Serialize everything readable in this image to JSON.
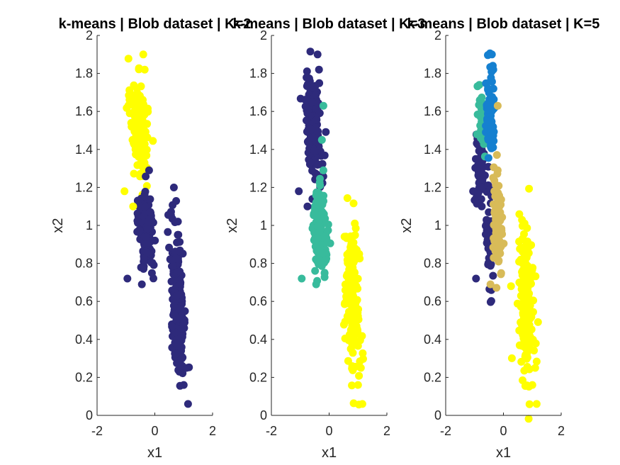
{
  "chart_data": [
    {
      "type": "scatter",
      "title": "k-means | Blob dataset | K=2",
      "xlabel": "x1",
      "ylabel": "x2",
      "xlim": [
        -2,
        2
      ],
      "ylim": [
        0,
        2
      ],
      "xticks": [
        "-2",
        "0",
        "2"
      ],
      "yticks": [
        "0",
        "0.2",
        "0.4",
        "0.6",
        "0.8",
        "1",
        "1.2",
        "1.4",
        "1.6",
        "1.8",
        "2"
      ],
      "grid": false,
      "clusters": [
        {
          "color": "#ffff00",
          "ellipses": [
            {
              "cx": -0.55,
              "cy": 1.52,
              "sx": 0.15,
              "sy": 0.13,
              "rho": -0.4,
              "n": 170
            }
          ]
        },
        {
          "color": "#2e2a7b",
          "ellipses": [
            {
              "cx": -0.3,
              "cy": 0.97,
              "sx": 0.12,
              "sy": 0.11,
              "rho": -0.3,
              "n": 170
            },
            {
              "cx": 0.8,
              "cy": 0.6,
              "sx": 0.13,
              "sy": 0.2,
              "rho": -0.3,
              "n": 170
            }
          ]
        }
      ],
      "points": [
        {
          "x": -0.4,
          "y": 1.9,
          "cluster": 0
        },
        {
          "x": -0.35,
          "y": 1.82,
          "cluster": 0
        },
        {
          "x": -1.05,
          "y": 1.18,
          "cluster": 0
        },
        {
          "x": -0.75,
          "y": 1.1,
          "cluster": 0
        },
        {
          "x": -0.2,
          "y": 1.29,
          "cluster": 1
        },
        {
          "x": -0.95,
          "y": 0.72,
          "cluster": 1
        },
        {
          "x": -0.45,
          "y": 0.69,
          "cluster": 1
        },
        {
          "x": 1.1,
          "y": 0.25,
          "cluster": 1
        },
        {
          "x": 1.0,
          "y": 0.16,
          "cluster": 1
        },
        {
          "x": 1.15,
          "y": 0.06,
          "cluster": 1
        }
      ]
    },
    {
      "type": "scatter",
      "title": "k-means | Blob dataset | K=3",
      "xlabel": "x1",
      "ylabel": "x2",
      "xlim": [
        -2,
        2
      ],
      "ylim": [
        0,
        2
      ],
      "xticks": [
        "-2",
        "0",
        "2"
      ],
      "yticks": [
        "0",
        "0.2",
        "0.4",
        "0.6",
        "0.8",
        "1",
        "1.2",
        "1.4",
        "1.6",
        "1.8",
        "2"
      ],
      "grid": false,
      "clusters": [
        {
          "color": "#2e2a7b",
          "ellipses": [
            {
              "cx": -0.55,
              "cy": 1.52,
              "sx": 0.15,
              "sy": 0.13,
              "rho": -0.4,
              "n": 170
            }
          ]
        },
        {
          "color": "#38bb9c",
          "ellipses": [
            {
              "cx": -0.3,
              "cy": 0.97,
              "sx": 0.12,
              "sy": 0.11,
              "rho": -0.3,
              "n": 170
            }
          ]
        },
        {
          "color": "#ffff00",
          "ellipses": [
            {
              "cx": 0.8,
              "cy": 0.6,
              "sx": 0.13,
              "sy": 0.2,
              "rho": -0.3,
              "n": 170
            }
          ]
        }
      ],
      "points": [
        {
          "x": -0.4,
          "y": 1.9,
          "cluster": 0
        },
        {
          "x": -0.35,
          "y": 1.82,
          "cluster": 0
        },
        {
          "x": -1.05,
          "y": 1.18,
          "cluster": 0
        },
        {
          "x": -0.75,
          "y": 1.1,
          "cluster": 0
        },
        {
          "x": -0.2,
          "y": 1.63,
          "cluster": 1
        },
        {
          "x": -0.25,
          "y": 1.45,
          "cluster": 1
        },
        {
          "x": -0.2,
          "y": 1.29,
          "cluster": 1
        },
        {
          "x": -0.95,
          "y": 0.72,
          "cluster": 1
        },
        {
          "x": -0.45,
          "y": 0.69,
          "cluster": 1
        },
        {
          "x": 1.1,
          "y": 0.25,
          "cluster": 2
        },
        {
          "x": 1.0,
          "y": 0.16,
          "cluster": 2
        },
        {
          "x": 1.15,
          "y": 0.06,
          "cluster": 2
        }
      ]
    },
    {
      "type": "scatter",
      "title": "k-means | Blob dataset | K=5",
      "xlabel": "x1",
      "ylabel": "x2",
      "xlim": [
        -2,
        2
      ],
      "ylim": [
        0,
        2
      ],
      "xticks": [
        "-2",
        "0",
        "2"
      ],
      "yticks": [
        "0",
        "0.2",
        "0.4",
        "0.6",
        "0.8",
        "1",
        "1.2",
        "1.4",
        "1.6",
        "1.8",
        "2"
      ],
      "grid": false,
      "clusters": [
        {
          "color": "#2e2a7b",
          "ellipses": [
            {
              "cx": -0.78,
              "cy": 1.3,
              "sx": 0.1,
              "sy": 0.11,
              "rho": -0.3,
              "n": 50
            },
            {
              "cx": -0.48,
              "cy": 0.93,
              "sx": 0.06,
              "sy": 0.12,
              "rho": -0.2,
              "n": 50
            }
          ]
        },
        {
          "color": "#38bb9c",
          "ellipses": [
            {
              "cx": -0.72,
              "cy": 1.55,
              "sx": 0.08,
              "sy": 0.08,
              "rho": -0.3,
              "n": 50
            }
          ]
        },
        {
          "color": "#1580d0",
          "ellipses": [
            {
              "cx": -0.45,
              "cy": 1.6,
              "sx": 0.08,
              "sy": 0.12,
              "rho": -0.3,
              "n": 80
            }
          ]
        },
        {
          "color": "#d8bb58",
          "ellipses": [
            {
              "cx": -0.2,
              "cy": 1.0,
              "sx": 0.08,
              "sy": 0.12,
              "rho": -0.3,
              "n": 100
            }
          ]
        },
        {
          "color": "#ffff00",
          "ellipses": [
            {
              "cx": 0.8,
              "cy": 0.6,
              "sx": 0.13,
              "sy": 0.2,
              "rho": -0.3,
              "n": 170
            }
          ]
        }
      ],
      "points": [
        {
          "x": -0.4,
          "y": 1.9,
          "cluster": 2
        },
        {
          "x": -0.35,
          "y": 1.82,
          "cluster": 2
        },
        {
          "x": -0.2,
          "y": 1.63,
          "cluster": 3
        },
        {
          "x": -1.05,
          "y": 1.18,
          "cluster": 0
        },
        {
          "x": -0.75,
          "y": 1.1,
          "cluster": 0
        },
        {
          "x": -0.2,
          "y": 1.29,
          "cluster": 3
        },
        {
          "x": -0.95,
          "y": 0.72,
          "cluster": 0
        },
        {
          "x": -0.45,
          "y": 0.69,
          "cluster": 3
        },
        {
          "x": 1.1,
          "y": 0.25,
          "cluster": 4
        },
        {
          "x": 1.0,
          "y": 0.16,
          "cluster": 4
        },
        {
          "x": 1.15,
          "y": 0.06,
          "cluster": 4
        }
      ]
    }
  ]
}
